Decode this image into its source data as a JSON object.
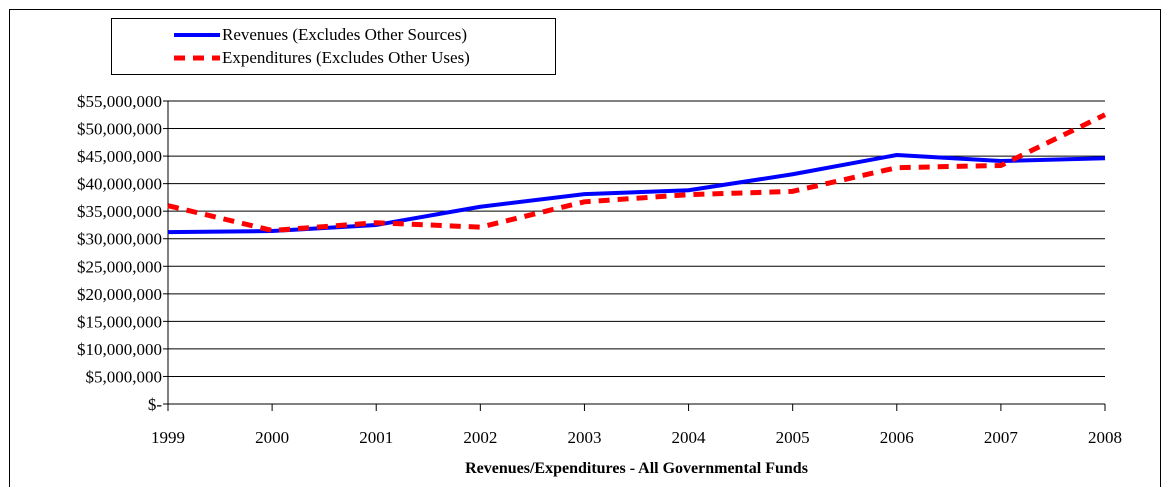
{
  "chart_data": {
    "type": "line",
    "title": "",
    "xlabel": "Revenues/Expenditures - All Governmental Funds",
    "ylabel": "",
    "categories": [
      "1999",
      "2000",
      "2001",
      "2002",
      "2003",
      "2004",
      "2005",
      "2006",
      "2007",
      "2008"
    ],
    "ylim": [
      0,
      55000000
    ],
    "y_ticks": [
      0,
      5000000,
      10000000,
      15000000,
      20000000,
      25000000,
      30000000,
      35000000,
      40000000,
      45000000,
      50000000,
      55000000
    ],
    "y_tick_labels": [
      "$-",
      "$5,000,000",
      "$10,000,000",
      "$15,000,000",
      "$20,000,000",
      "$25,000,000",
      "$30,000,000",
      "$35,000,000",
      "$40,000,000",
      "$45,000,000",
      "$50,000,000",
      "$55,000,000"
    ],
    "grid": "horizontal",
    "legend_position": "top-left",
    "series": [
      {
        "name": "Revenues (Excludes Other Sources)",
        "color": "#0000ff",
        "style": "solid",
        "values": [
          31200000,
          31400000,
          32500000,
          35800000,
          38100000,
          38800000,
          41700000,
          45200000,
          44100000,
          44600000
        ]
      },
      {
        "name": "Expenditures (Excludes Other Uses)",
        "color": "#ff0000",
        "style": "dashed",
        "values": [
          36000000,
          31500000,
          32900000,
          32100000,
          36700000,
          38000000,
          38600000,
          42900000,
          43300000,
          52500000
        ]
      }
    ]
  }
}
